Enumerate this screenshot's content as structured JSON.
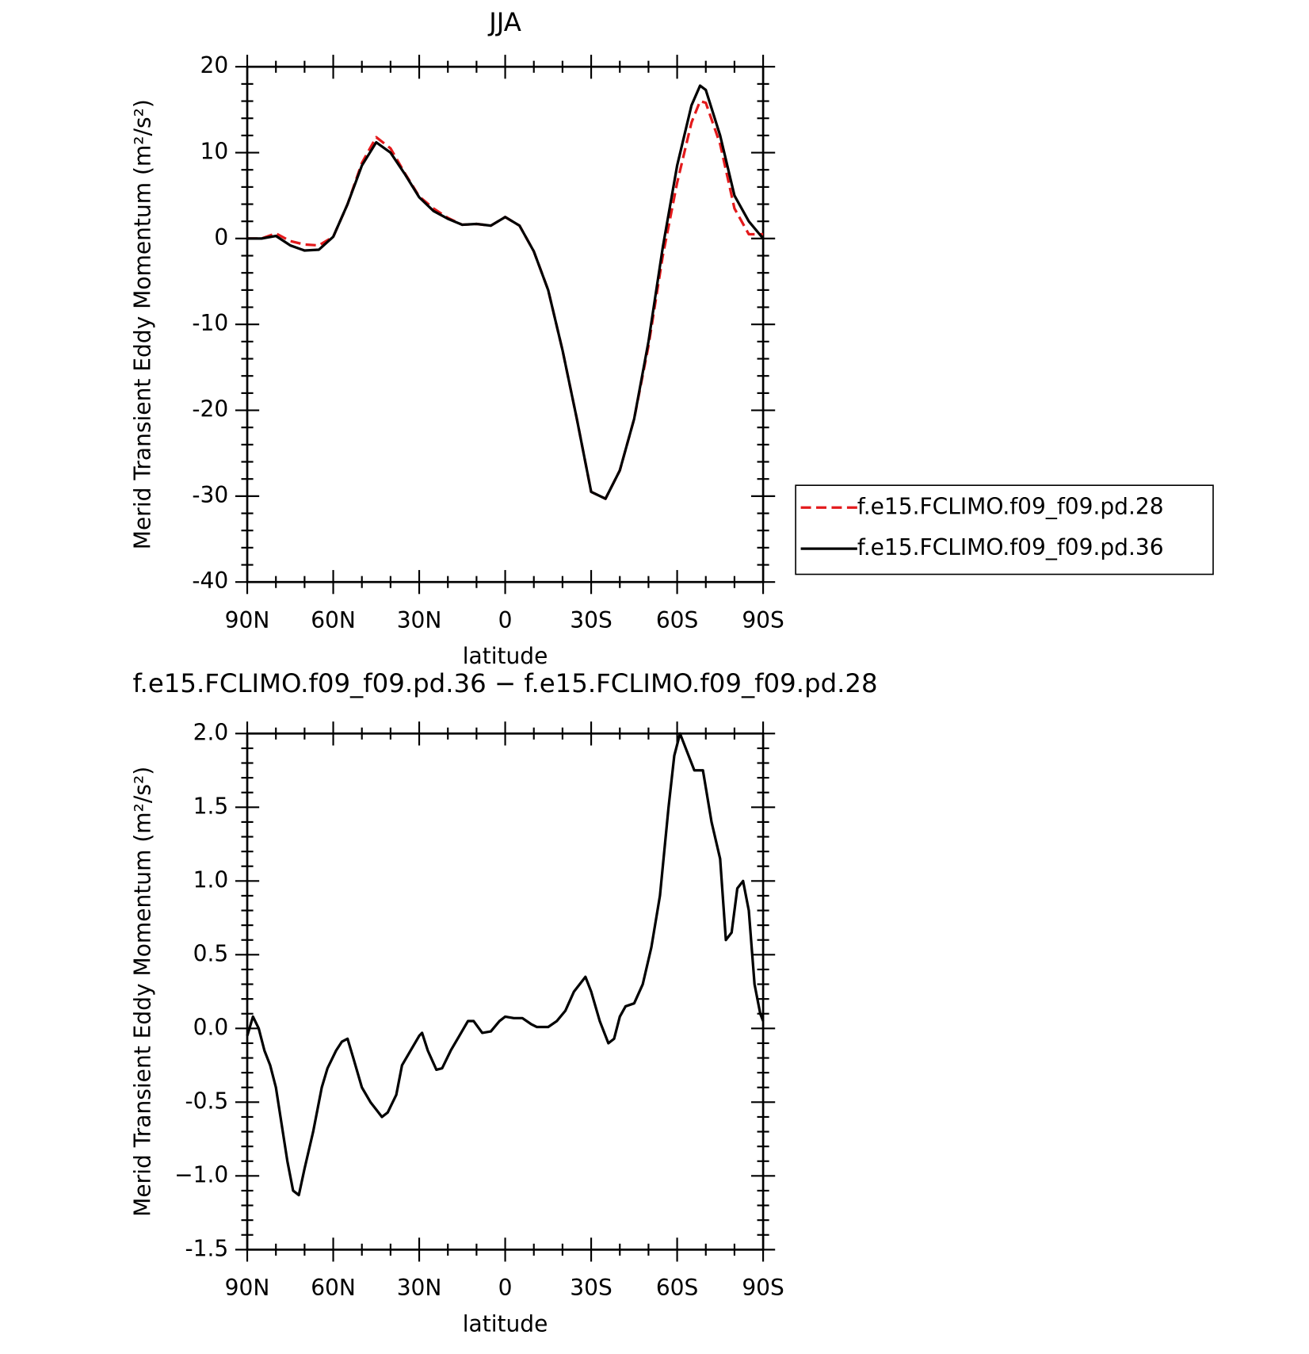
{
  "chart_data": [
    {
      "type": "line",
      "title": "JJA",
      "xlabel": "latitude",
      "ylabel": "Merid Transient Eddy Momentum (m²/s²)",
      "x": [
        90,
        85,
        80,
        75,
        70,
        65,
        60,
        55,
        50,
        45,
        40,
        35,
        30,
        25,
        20,
        15,
        10,
        5,
        0,
        -5,
        -10,
        -15,
        -20,
        -25,
        -30,
        -35,
        -40,
        -45,
        -50,
        -55,
        -60,
        -65,
        -68,
        -70,
        -75,
        -80,
        -85,
        -90
      ],
      "xlim": [
        90,
        -90
      ],
      "xticks": [
        {
          "value": 90,
          "label": "90N"
        },
        {
          "value": 60,
          "label": "60N"
        },
        {
          "value": 30,
          "label": "30N"
        },
        0,
        {
          "value": -30,
          "label": "30S"
        },
        {
          "value": -60,
          "label": "60S"
        },
        {
          "value": -90,
          "label": "90S"
        }
      ],
      "ylim": [
        -40,
        20
      ],
      "yticks": [
        -40,
        -30,
        -20,
        -10,
        0,
        10,
        20
      ],
      "legend": "right",
      "series": [
        {
          "name": "f.e15.FCLIMO.f09_f09.pd.28",
          "color": "#e31a1c",
          "dash": "dashed",
          "values": [
            0,
            0,
            0.6,
            -0.3,
            -0.7,
            -0.8,
            0.2,
            4,
            8.8,
            11.8,
            10.5,
            7.6,
            4.9,
            3.5,
            2.4,
            1.6,
            1.7,
            1.5,
            2.5,
            1.5,
            -1.5,
            -6,
            -13,
            -21,
            -29.5,
            -30.3,
            -27,
            -21,
            -12.5,
            -2,
            6.5,
            13.5,
            16,
            15.8,
            11,
            3.5,
            0.5,
            0.5
          ]
        },
        {
          "name": "f.e15.FCLIMO.f09_f09.pd.36",
          "color": "#000000",
          "dash": "solid",
          "values": [
            0,
            0,
            0.3,
            -0.8,
            -1.4,
            -1.3,
            0.2,
            4,
            8.5,
            11.2,
            10,
            7.5,
            4.8,
            3.2,
            2.3,
            1.6,
            1.7,
            1.5,
            2.5,
            1.5,
            -1.5,
            -6,
            -13,
            -21,
            -29.5,
            -30.3,
            -27,
            -21,
            -12,
            -1,
            8.5,
            15.5,
            17.8,
            17.3,
            12,
            5,
            2,
            0
          ]
        }
      ]
    },
    {
      "type": "line",
      "title": "f.e15.FCLIMO.f09_f09.pd.36 − f.e15.FCLIMO.f09_f09.pd.28",
      "xlabel": "latitude",
      "ylabel": "Merid Transient Eddy Momentum (m²/s²)",
      "x": [
        90,
        88,
        86,
        84,
        82,
        80,
        78,
        76,
        74,
        72,
        70,
        67,
        64,
        62,
        59,
        57,
        55,
        53,
        50,
        47,
        45,
        43,
        41,
        38,
        36,
        33,
        30,
        29,
        27,
        24,
        22,
        19,
        16,
        13,
        11,
        8,
        5,
        2,
        0,
        -3,
        -6,
        -9,
        -11,
        -15,
        -18,
        -21,
        -24,
        -28,
        -30,
        -33,
        -36,
        -38,
        -40,
        -42,
        -45,
        -48,
        -51,
        -54,
        -57,
        -59,
        -61,
        -63,
        -66,
        -69,
        -72,
        -75,
        -77,
        -79,
        -81,
        -83,
        -85,
        -87,
        -89,
        -90
      ],
      "xlim": [
        90,
        -90
      ],
      "xticks": [
        {
          "value": 90,
          "label": "90N"
        },
        {
          "value": 60,
          "label": "60N"
        },
        {
          "value": 30,
          "label": "30N"
        },
        0,
        {
          "value": -30,
          "label": "30S"
        },
        {
          "value": -60,
          "label": "60S"
        },
        {
          "value": -90,
          "label": "90S"
        }
      ],
      "ylim": [
        -1.5,
        2
      ],
      "yticks": [
        -1.5,
        {
          "value": -1,
          "label": "−1.0"
        },
        -0.5,
        {
          "value": 0,
          "label": "0.0"
        },
        0.5,
        {
          "value": 1,
          "label": "1.0"
        },
        1.5,
        {
          "value": 2,
          "label": "2.0"
        }
      ],
      "series": [
        {
          "color": "#000000",
          "dash": "solid",
          "values": [
            -0.05,
            0.08,
            0,
            -0.15,
            -0.25,
            -0.4,
            -0.65,
            -0.9,
            -1.1,
            -1.13,
            -0.95,
            -0.7,
            -0.4,
            -0.27,
            -0.15,
            -0.09,
            -0.07,
            -0.2,
            -0.4,
            -0.5,
            -0.55,
            -0.6,
            -0.57,
            -0.45,
            -0.25,
            -0.15,
            -0.05,
            -0.03,
            -0.15,
            -0.28,
            -0.27,
            -0.15,
            -0.05,
            0.05,
            0.05,
            -0.03,
            -0.02,
            0.05,
            0.08,
            0.07,
            0.07,
            0.03,
            0.01,
            0.01,
            0.05,
            0.12,
            0.25,
            0.35,
            0.25,
            0.05,
            -0.1,
            -0.07,
            0.08,
            0.15,
            0.17,
            0.3,
            0.55,
            0.9,
            1.5,
            1.85,
            2,
            1.9,
            1.75,
            1.75,
            1.4,
            1.15,
            0.6,
            0.65,
            0.95,
            1,
            0.8,
            0.3,
            0.1,
            0.05
          ]
        }
      ]
    }
  ]
}
